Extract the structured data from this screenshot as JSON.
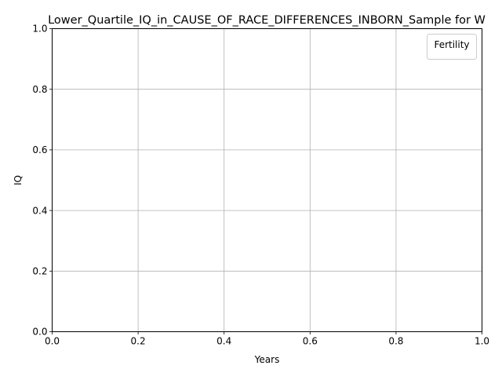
{
  "chart_data": {
    "type": "line",
    "title": "Lower_Quartile_IQ_in_CAUSE_OF_RACE_DIFFERENCES_INBORN_Sample for W",
    "xlabel": "Years",
    "ylabel": "IQ",
    "xlim": [
      0.0,
      1.0
    ],
    "ylim": [
      0.0,
      1.0
    ],
    "x_ticks": [
      0.0,
      0.2,
      0.4,
      0.6,
      0.8,
      1.0
    ],
    "y_ticks": [
      0.0,
      0.2,
      0.4,
      0.6,
      0.8,
      1.0
    ],
    "x_tick_labels": [
      "0.0",
      "0.2",
      "0.4",
      "0.6",
      "0.8",
      "1.0"
    ],
    "y_tick_labels": [
      "0.0",
      "0.2",
      "0.4",
      "0.6",
      "0.8",
      "1.0"
    ],
    "grid": true,
    "legend": {
      "title": "Fertility",
      "placement": "top-right",
      "entries": []
    },
    "series": []
  }
}
